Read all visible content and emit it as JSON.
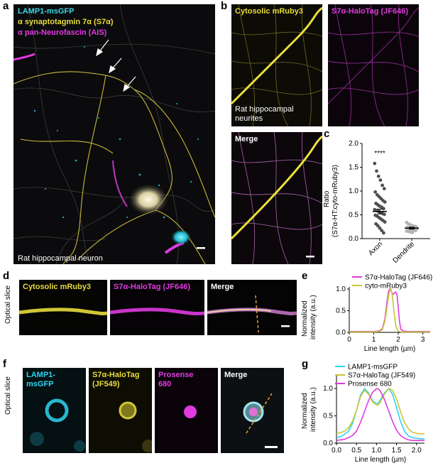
{
  "panels": {
    "a": {
      "letter": "a",
      "labels": [
        "LAMP1-msGFP",
        "α synaptotagmin 7α (S7α)",
        "α pan-Neurofascin (AIS)"
      ],
      "label_colors": [
        "#3fd6e6",
        "#e8dc3c",
        "#e03ae0"
      ],
      "caption": "Rat hippocampal neuron"
    },
    "b": {
      "letter": "b",
      "left_label": "Cytosolic mRuby3",
      "right_label": "S7α-HaloTag (JF646)",
      "left_caption": "Rat hippocampal neurites",
      "merge_label": "Merge"
    },
    "c": {
      "letter": "c",
      "ylabel_line1": "Ratio",
      "ylabel_line2": "(S7α-HT:cyto-mRuby3)",
      "significance": "****"
    },
    "d": {
      "letter": "d",
      "side_label": "Optical slice",
      "tiles": [
        "Cytosolic mRuby3",
        "S7α-HaloTag (JF646)",
        "Merge"
      ]
    },
    "e": {
      "letter": "e",
      "ylabel_line1": "Normalized",
      "ylabel_line2": "intensity (a.u.)",
      "xlabel": "Line length (µm)"
    },
    "f": {
      "letter": "f",
      "side_label": "Optical slice",
      "tiles": [
        "LAMP1-\nmsGFP",
        "S7α-HaloTag\n(JF549)",
        "Prosense\n680",
        "Merge"
      ]
    },
    "g": {
      "letter": "g",
      "ylabel_line1": "Normalized",
      "ylabel_line2": "intensity (a.u.)",
      "xlabel": "Line length (µm)"
    }
  },
  "chart_data": [
    {
      "id": "c",
      "type": "scatter",
      "categories": [
        "Axon",
        "Dendrite"
      ],
      "ylim": [
        0,
        2.0
      ],
      "yticks": [
        0.0,
        0.5,
        1.0,
        1.5,
        2.0
      ],
      "mean": [
        0.57,
        0.22
      ],
      "sem": [
        0.05,
        0.02
      ],
      "series": [
        {
          "values": [
            1.58,
            1.42,
            1.31,
            1.23,
            1.12,
            1.05,
            0.98,
            0.92,
            0.88,
            0.84,
            0.8,
            0.77,
            0.74,
            0.71,
            0.68,
            0.66,
            0.63,
            0.61,
            0.59,
            0.57,
            0.55,
            0.53,
            0.51,
            0.49,
            0.47,
            0.44,
            0.41,
            0.38,
            0.35,
            0.31,
            0.27,
            0.22,
            0.17,
            0.12
          ]
        },
        {
          "values": [
            0.34,
            0.31,
            0.29,
            0.27,
            0.26,
            0.25,
            0.24,
            0.23,
            0.22,
            0.22,
            0.21,
            0.2,
            0.2,
            0.19,
            0.18,
            0.18,
            0.17,
            0.16,
            0.15,
            0.14,
            0.13
          ]
        }
      ],
      "colors": [
        "#505050",
        "#b4b4b4"
      ]
    },
    {
      "id": "e",
      "type": "line",
      "xlim": [
        0,
        3.3
      ],
      "ylim": [
        0,
        1.05
      ],
      "xticks": [
        0,
        1,
        2,
        3
      ],
      "yticks": [
        0.0,
        0.5,
        1.0
      ],
      "x": [
        0,
        0.2,
        0.4,
        0.6,
        0.8,
        1.0,
        1.2,
        1.35,
        1.45,
        1.55,
        1.6,
        1.65,
        1.7,
        1.75,
        1.8,
        1.85,
        1.9,
        1.95,
        2.0,
        2.05,
        2.1,
        2.2,
        2.4,
        2.6,
        2.8,
        3.0,
        3.3
      ],
      "series": [
        {
          "name": "S7α-HaloTag (JF646)",
          "color": "#e03ae0",
          "values": [
            0.02,
            0.02,
            0.02,
            0.02,
            0.02,
            0.02,
            0.03,
            0.08,
            0.3,
            0.75,
            0.95,
            1.0,
            0.97,
            0.9,
            0.88,
            0.92,
            0.93,
            0.85,
            0.55,
            0.25,
            0.08,
            0.03,
            0.02,
            0.02,
            0.02,
            0.02,
            0.02
          ]
        },
        {
          "name": "cyto-mRuby3",
          "color": "#c8c832",
          "values": [
            0.01,
            0.01,
            0.01,
            0.01,
            0.01,
            0.01,
            0.02,
            0.06,
            0.25,
            0.62,
            0.85,
            0.96,
            1.0,
            0.88,
            0.6,
            0.35,
            0.15,
            0.07,
            0.03,
            0.02,
            0.01,
            0.01,
            0.01,
            0.01,
            0.01,
            0.01,
            0.01
          ]
        }
      ]
    },
    {
      "id": "g",
      "type": "line",
      "xlim": [
        0,
        2.2
      ],
      "ylim": [
        0,
        1.25
      ],
      "xticks": [
        0.0,
        0.5,
        1.0,
        1.5,
        2.0
      ],
      "yticks": [
        0.0,
        0.5,
        1.0
      ],
      "x": [
        0,
        0.1,
        0.2,
        0.3,
        0.4,
        0.5,
        0.6,
        0.7,
        0.8,
        0.9,
        1.0,
        1.05,
        1.1,
        1.2,
        1.3,
        1.4,
        1.5,
        1.6,
        1.7,
        1.8,
        1.9,
        2.0,
        2.1,
        2.2
      ],
      "series": [
        {
          "name": "LAMP1-msGFP",
          "color": "#2fd3f0",
          "values": [
            0.1,
            0.12,
            0.16,
            0.22,
            0.36,
            0.6,
            0.88,
            1.0,
            0.92,
            0.78,
            0.72,
            0.74,
            0.8,
            0.92,
            1.0,
            0.9,
            0.66,
            0.4,
            0.22,
            0.13,
            0.1,
            0.09,
            0.08,
            0.08
          ]
        },
        {
          "name": "S7α-HaloTag (JF549)",
          "color": "#c8c832",
          "values": [
            0.18,
            0.19,
            0.22,
            0.28,
            0.4,
            0.6,
            0.85,
            0.97,
            0.9,
            0.76,
            0.7,
            0.7,
            0.76,
            0.9,
            1.0,
            0.97,
            0.82,
            0.58,
            0.38,
            0.26,
            0.2,
            0.18,
            0.17,
            0.17
          ]
        },
        {
          "name": "Prosense 680",
          "color": "#e03ae0",
          "values": [
            0.05,
            0.06,
            0.07,
            0.1,
            0.14,
            0.22,
            0.38,
            0.58,
            0.78,
            0.93,
            1.0,
            0.99,
            0.95,
            0.8,
            0.6,
            0.4,
            0.24,
            0.14,
            0.09,
            0.06,
            0.05,
            0.05,
            0.05,
            0.05
          ]
        }
      ]
    }
  ]
}
